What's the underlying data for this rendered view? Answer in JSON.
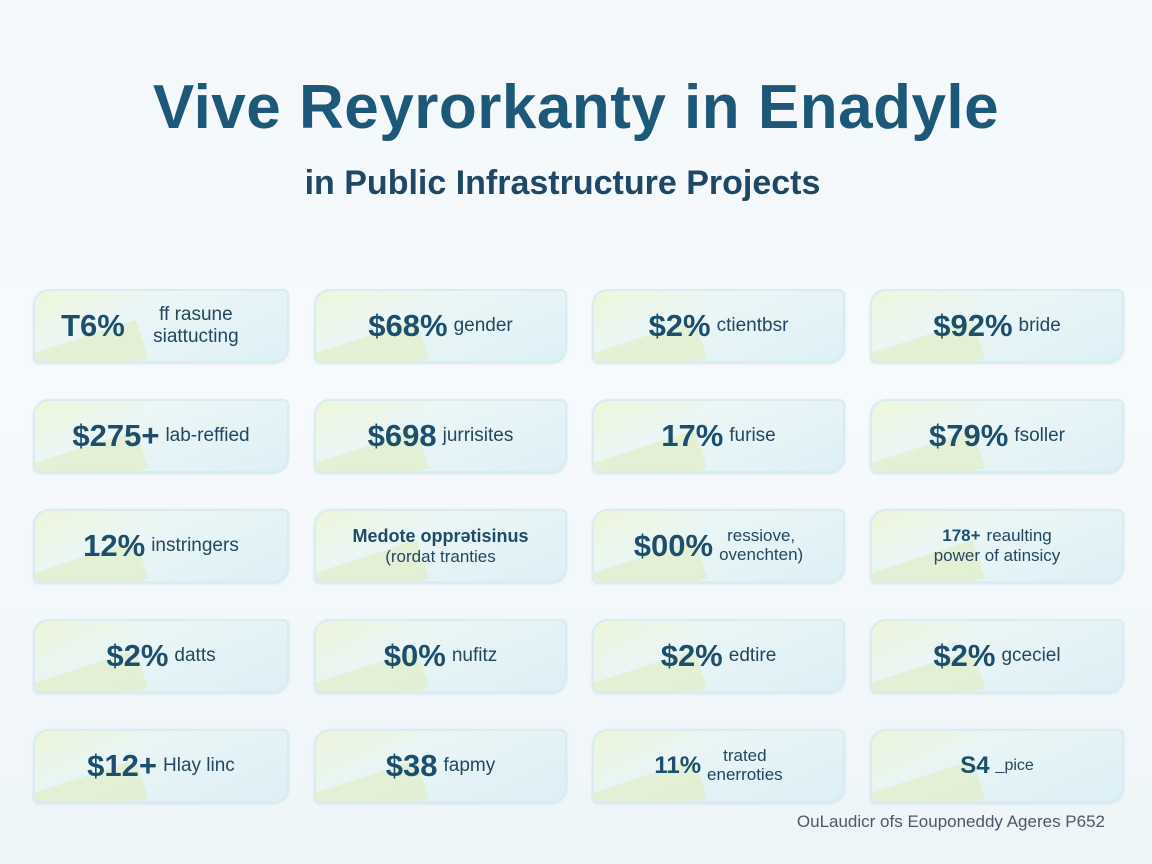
{
  "title": "Vive Reyrorkanty in Enadyle",
  "subtitle": "in Public Infrastructure Projects",
  "cards": [
    {
      "stat": "T6%",
      "label": "ff rasune siattucting"
    },
    {
      "stat": "$68%",
      "label": "gender"
    },
    {
      "stat": "$2%",
      "label": "ctientbsr"
    },
    {
      "stat": "$92%",
      "label": "bride"
    },
    {
      "stat": "$275+",
      "label": "lab-reffied"
    },
    {
      "stat": "$698",
      "label": "jurrisites"
    },
    {
      "stat": "17%",
      "label": "furise"
    },
    {
      "stat": "$79%",
      "label": "fsoller"
    },
    {
      "stat": "12%",
      "label": "instringers"
    },
    {
      "line1": "Medote opprətisinus",
      "line2": "(rordat tranties"
    },
    {
      "stat": "$00%",
      "label_line1": "ressiove,",
      "label_line2": "ovenchten)"
    },
    {
      "small_stat": "178+",
      "label_line1": "reaulting",
      "label_line2": "power of atinsicy"
    },
    {
      "stat": "$2%",
      "label": "datts"
    },
    {
      "stat": "$0%",
      "label": "nufitz"
    },
    {
      "stat": "$2%",
      "label": "edtire"
    },
    {
      "stat": "$2%",
      "label": "gceciel"
    },
    {
      "stat": "$12+",
      "label": "Hlay linc"
    },
    {
      "stat": "$38",
      "label": "fapmy"
    },
    {
      "stat": "11%",
      "label_line1": "trated",
      "label_line2": "enerroties"
    },
    {
      "stat": "S4",
      "label": "_pice"
    }
  ],
  "footer": "OuLaudicr ofs Eouponeddy Ageres P652"
}
